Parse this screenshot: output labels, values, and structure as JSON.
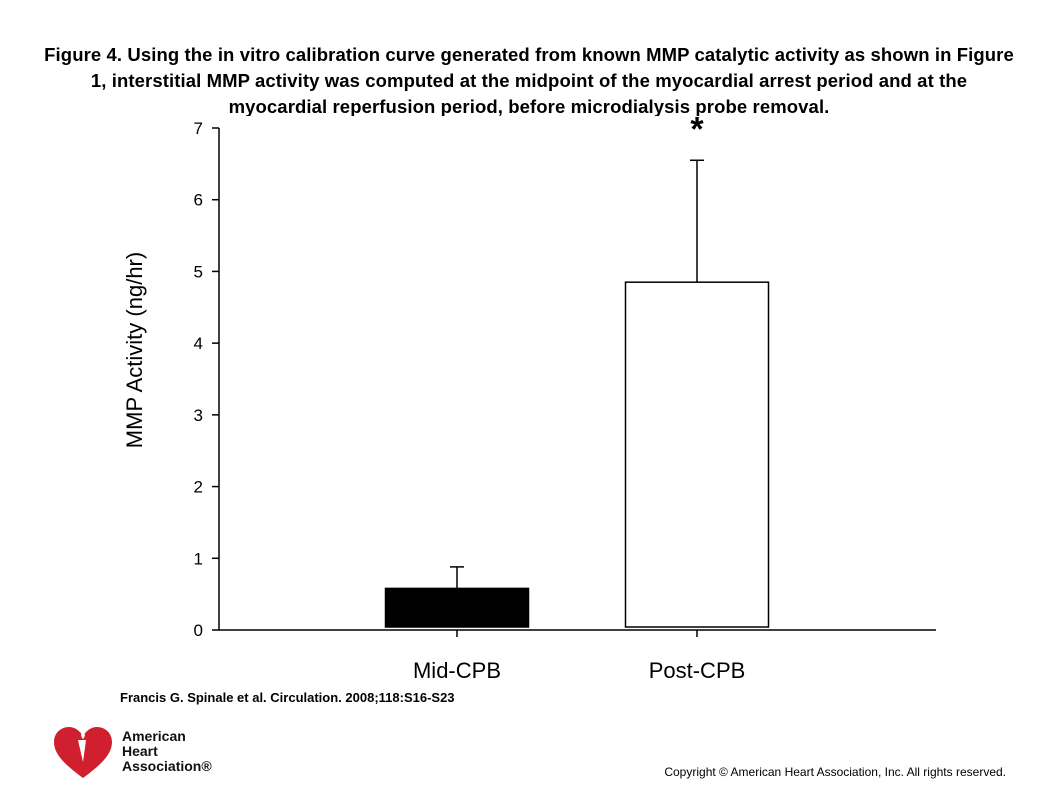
{
  "title": "Figure 4. Using the in vitro calibration curve generated from known MMP catalytic activity as shown in Figure 1, interstitial MMP activity was computed at the midpoint of the myocardial arrest period and at the myocardial reperfusion period, before microdialysis probe removal.",
  "citation": "Francis G. Spinale et al. Circulation. 2008;118:S16-S23",
  "copyright": "Copyright © American Heart Association, Inc. All rights reserved.",
  "logo": {
    "line1": "American",
    "line2": "Heart",
    "line3": "Association®",
    "icon": "heart-torch-icon",
    "color": "#d0202f"
  },
  "chart_data": {
    "type": "bar",
    "categories": [
      "Mid-CPB",
      "Post-CPB"
    ],
    "values": [
      0.58,
      4.85
    ],
    "error_upper": [
      0.88,
      6.55
    ],
    "bar_fills": [
      "#000000",
      "#ffffff"
    ],
    "ylabel": "MMP Activity (ng/hr)",
    "xlabel": "",
    "ylim": [
      0,
      7
    ],
    "yticks": [
      "0",
      "1",
      "2",
      "3",
      "4",
      "5",
      "6",
      "7"
    ],
    "annotations": [
      {
        "category": "Post-CPB",
        "text": "*"
      }
    ],
    "grid": false,
    "legend": "none"
  }
}
